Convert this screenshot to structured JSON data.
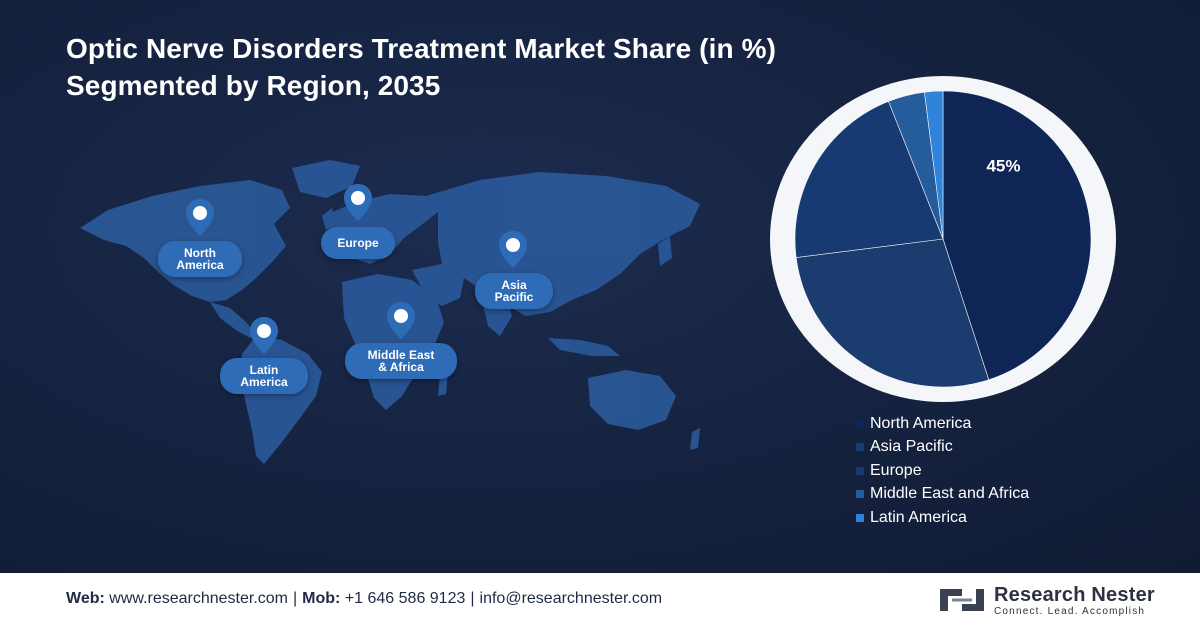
{
  "title": {
    "line1": "Optic Nerve Disorders Treatment Market Share (in %)",
    "line2": "Segmented by Region, 2035"
  },
  "map": {
    "labels": {
      "north_america": [
        "North",
        "America"
      ],
      "europe": [
        "Europe"
      ],
      "asia_pacific": [
        "Asia",
        "Pacific"
      ],
      "latin_america": [
        "Latin",
        "America"
      ],
      "middle_east_africa": [
        "Middle East",
        "& Africa"
      ]
    },
    "icon": "map-pin-icon"
  },
  "chart_data": {
    "type": "pie",
    "categories": [
      "North America",
      "Asia Pacific",
      "Europe",
      "Middle East and Africa",
      "Latin America"
    ],
    "values": [
      45,
      28,
      21,
      4,
      2
    ],
    "data_labels": [
      "45%",
      "",
      "",
      "",
      ""
    ],
    "colors": [
      "#0e2555",
      "#1b3c6e",
      "#173a72",
      "#255c9c",
      "#2f83d9"
    ],
    "legend_position": "bottom"
  },
  "footer": {
    "web_label": "Web:",
    "web_value": "www.researchnester.com",
    "mob_label": "Mob:",
    "mob_value": "+1 646 586 9123",
    "email": "info@researchnester.com",
    "separator": "|",
    "brand_name": "Research Nester",
    "brand_tagline": "Connect. Lead. Accomplish",
    "brand_icon": "research-nester-logo-icon"
  }
}
